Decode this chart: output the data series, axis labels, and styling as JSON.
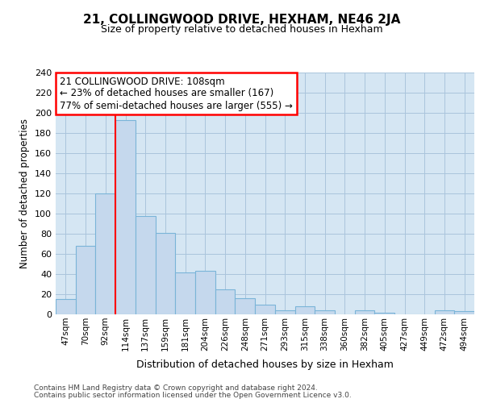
{
  "title": "21, COLLINGWOOD DRIVE, HEXHAM, NE46 2JA",
  "subtitle": "Size of property relative to detached houses in Hexham",
  "xlabel": "Distribution of detached houses by size in Hexham",
  "ylabel": "Number of detached properties",
  "footnote1": "Contains HM Land Registry data © Crown copyright and database right 2024.",
  "footnote2": "Contains public sector information licensed under the Open Government Licence v3.0.",
  "categories": [
    "47sqm",
    "70sqm",
    "92sqm",
    "114sqm",
    "137sqm",
    "159sqm",
    "181sqm",
    "204sqm",
    "226sqm",
    "248sqm",
    "271sqm",
    "293sqm",
    "315sqm",
    "338sqm",
    "360sqm",
    "382sqm",
    "405sqm",
    "427sqm",
    "449sqm",
    "472sqm",
    "494sqm"
  ],
  "values": [
    15,
    68,
    120,
    193,
    98,
    81,
    42,
    43,
    25,
    16,
    10,
    4,
    8,
    4,
    0,
    4,
    2,
    0,
    0,
    4,
    3
  ],
  "bar_color": "#c5d8ed",
  "bar_edge_color": "#7ab4d8",
  "grid_color": "#aac4dc",
  "background_color": "#d5e6f3",
  "annotation_line1": "21 COLLINGWOOD DRIVE: 108sqm",
  "annotation_line2": "← 23% of detached houses are smaller (167)",
  "annotation_line3": "77% of semi-detached houses are larger (555) →",
  "annotation_box_color": "white",
  "annotation_box_edge_color": "red",
  "vline_color": "red",
  "vline_position": 2.5,
  "ylim": [
    0,
    240
  ],
  "yticks": [
    0,
    20,
    40,
    60,
    80,
    100,
    120,
    140,
    160,
    180,
    200,
    220,
    240
  ],
  "title_fontsize": 11,
  "subtitle_fontsize": 9,
  "ylabel_fontsize": 8.5,
  "xlabel_fontsize": 9,
  "tick_fontsize": 8,
  "xtick_fontsize": 7.5,
  "annot_fontsize": 8.5,
  "footnote_fontsize": 6.5,
  "footnote_color": "#444444"
}
